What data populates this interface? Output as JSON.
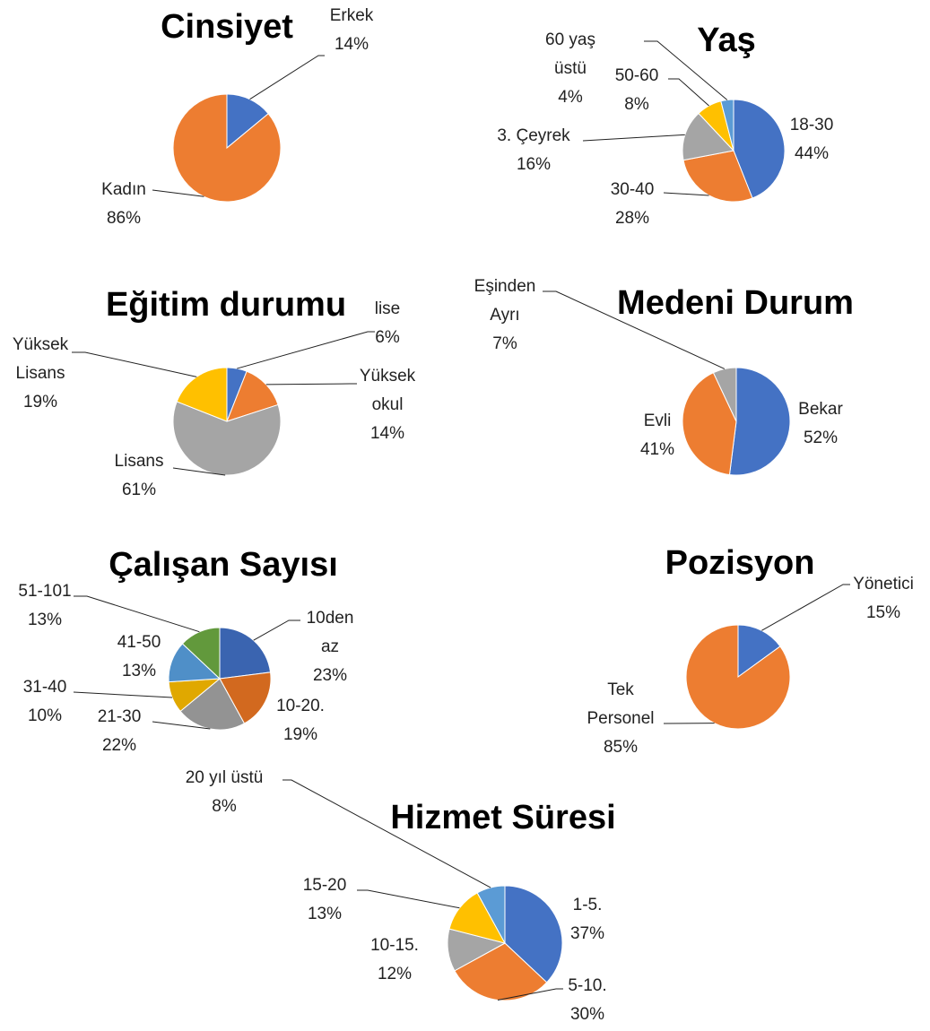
{
  "chart_data": [
    {
      "type": "pie",
      "title": "Cinsiyet",
      "categories": [
        "Erkek",
        "Kadın"
      ],
      "values": [
        14,
        86
      ],
      "value_labels": [
        "14%",
        "86%"
      ],
      "colors": [
        "#4472c4",
        "#ed7d31"
      ]
    },
    {
      "type": "pie",
      "title": "Yaş",
      "categories": [
        "18-30",
        "30-40",
        "3. Çeyrek",
        "50-60",
        "60 yaş üstü"
      ],
      "values": [
        44,
        28,
        16,
        8,
        4
      ],
      "value_labels": [
        "44%",
        "28%",
        "16%",
        "8%",
        "4%"
      ],
      "colors": [
        "#4472c4",
        "#ed7d31",
        "#a5a5a5",
        "#ffc000",
        "#5b9bd5"
      ]
    },
    {
      "type": "pie",
      "title": "Eğitim durumu",
      "categories": [
        "lise",
        "Yüksek okul",
        "Lisans",
        "Yüksek Lisans"
      ],
      "values": [
        6,
        14,
        61,
        19
      ],
      "value_labels": [
        "6%",
        "14%",
        "61%",
        "19%"
      ],
      "colors": [
        "#4472c4",
        "#ed7d31",
        "#a5a5a5",
        "#ffc000"
      ]
    },
    {
      "type": "pie",
      "title": "Medeni Durum",
      "categories": [
        "Bekar",
        "Evli",
        "Eşinden Ayrı"
      ],
      "values": [
        52,
        41,
        7
      ],
      "value_labels": [
        "52%",
        "41%",
        "7%"
      ],
      "colors": [
        "#4472c4",
        "#ed7d31",
        "#a5a5a5"
      ]
    },
    {
      "type": "pie",
      "title": "Çalışan Sayısı",
      "categories": [
        "10den az",
        "10-20.",
        "21-30",
        "31-40",
        "41-50",
        "51-101"
      ],
      "values": [
        23,
        19,
        22,
        10,
        13,
        13
      ],
      "value_labels": [
        "23%",
        "19%",
        "22%",
        "10%",
        "13%",
        "13%"
      ],
      "colors": [
        "#3a64b0",
        "#d2691f",
        "#939393",
        "#e0a800",
        "#4f8fc8",
        "#62993c"
      ]
    },
    {
      "type": "pie",
      "title": "Pozisyon",
      "categories": [
        "Yönetici",
        "Tek Personel"
      ],
      "values": [
        15,
        85
      ],
      "value_labels": [
        "15%",
        "85%"
      ],
      "colors": [
        "#4472c4",
        "#ed7d31"
      ]
    },
    {
      "type": "pie",
      "title": "Hizmet Süresi",
      "categories": [
        "1-5.",
        "5-10.",
        "10-15.",
        "15-20",
        "20 yıl üstü"
      ],
      "values": [
        37,
        30,
        12,
        13,
        8
      ],
      "value_labels": [
        "37%",
        "30%",
        "12%",
        "13%",
        "8%"
      ],
      "colors": [
        "#4472c4",
        "#ed7d31",
        "#a5a5a5",
        "#ffc000",
        "#5b9bd5"
      ]
    }
  ]
}
